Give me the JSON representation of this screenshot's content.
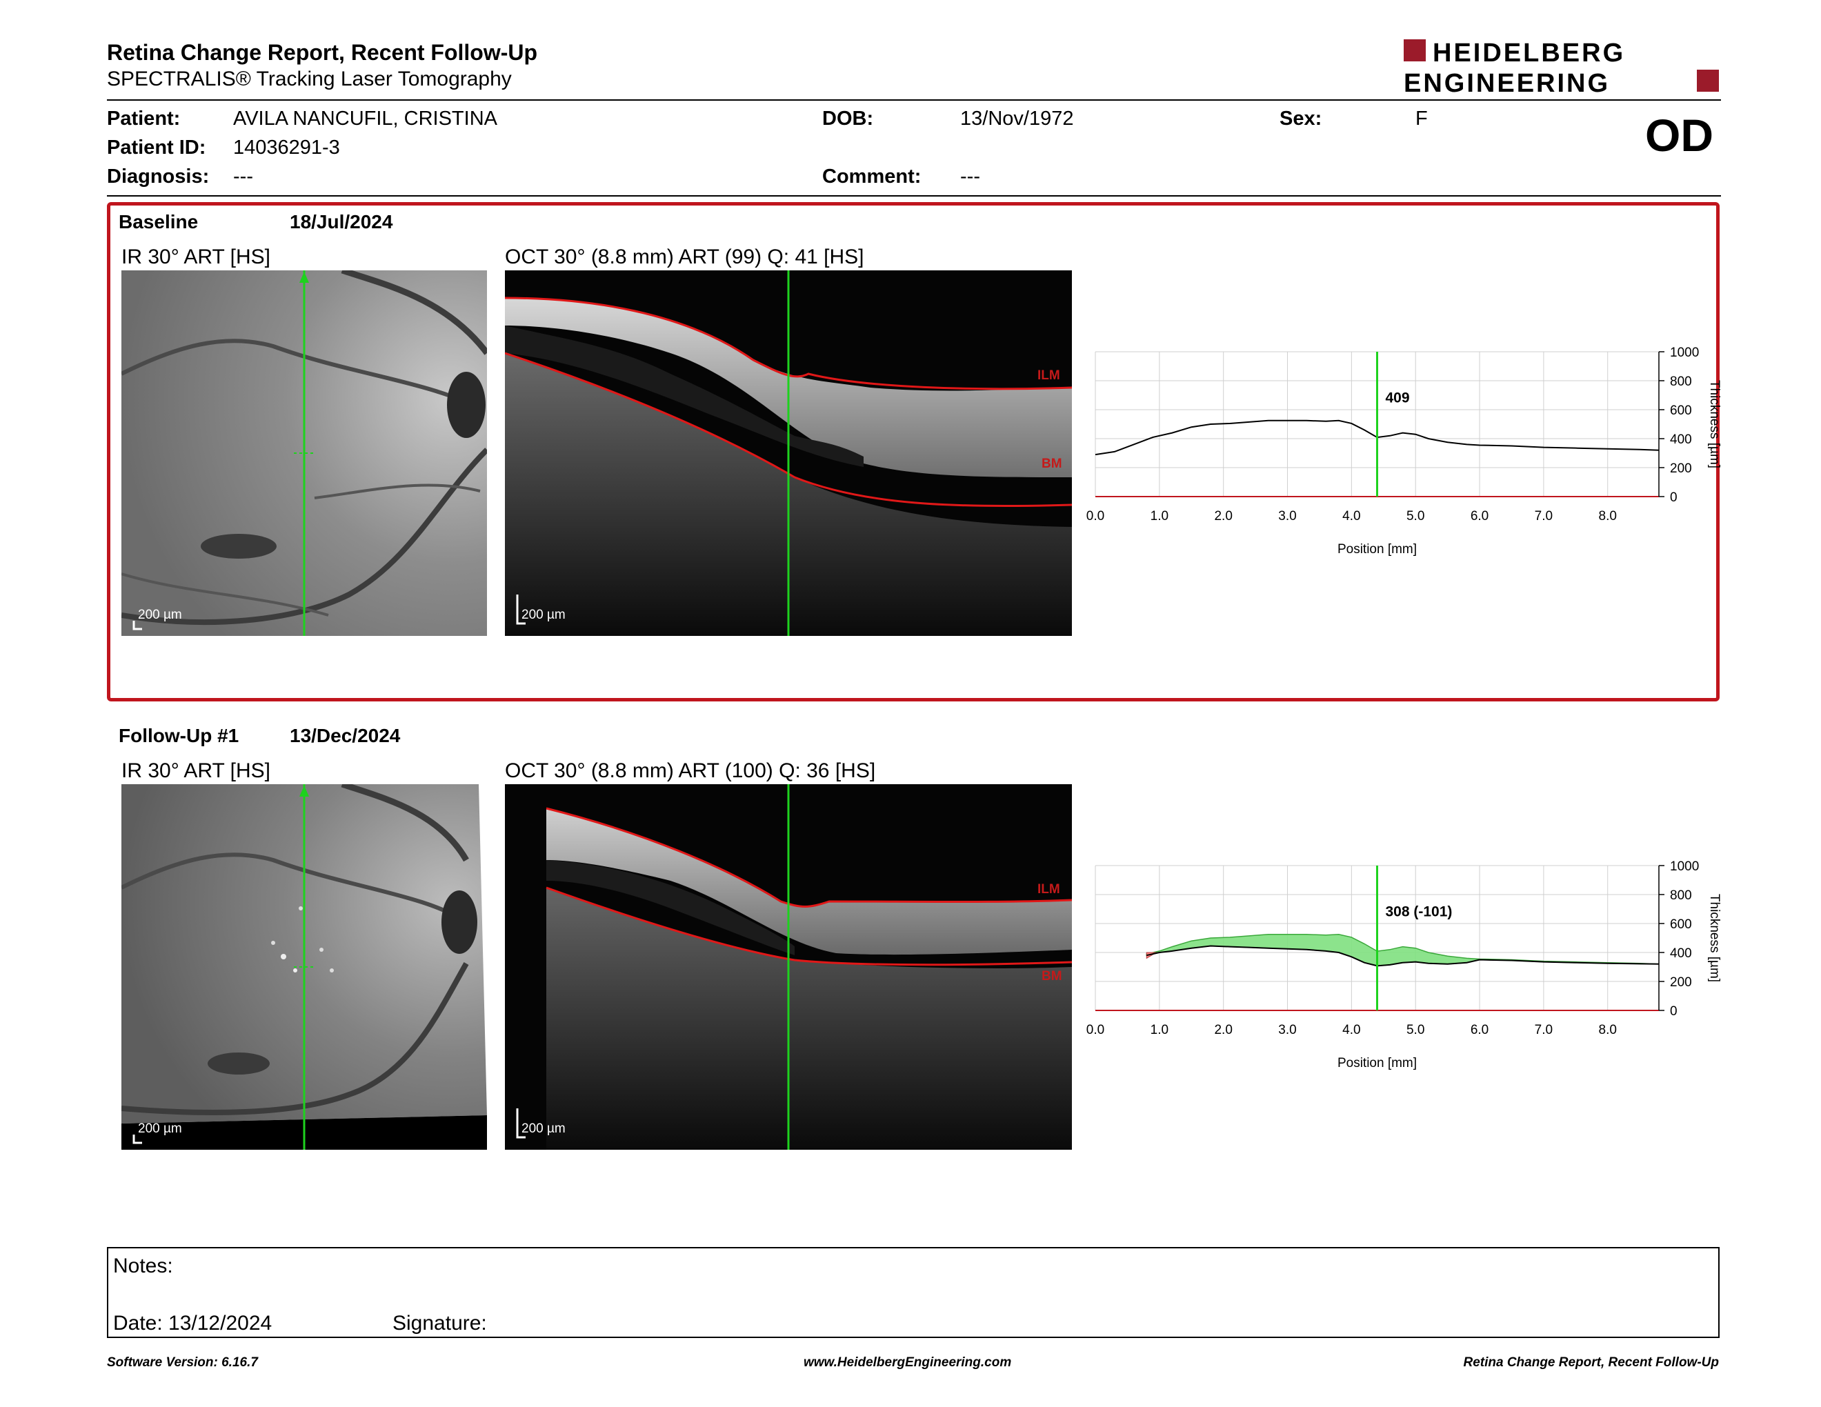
{
  "header": {
    "title": "Retina Change Report, Recent Follow-Up",
    "subtitle": "SPECTRALIS® Tracking Laser Tomography",
    "logo_line1": "HEIDELBERG",
    "logo_line2": "ENGINEERING",
    "eye": "OD"
  },
  "patient": {
    "patient_label": "Patient:",
    "patient_value": "AVILA NANCUFIL, CRISTINA",
    "id_label": "Patient ID:",
    "id_value": "14036291-3",
    "diagnosis_label": "Diagnosis:",
    "diagnosis_value": "---",
    "dob_label": "DOB:",
    "dob_value": "13/Nov/1972",
    "comment_label": "Comment:",
    "comment_value": "---",
    "sex_label": "Sex:",
    "sex_value": "F"
  },
  "baseline": {
    "label": "Baseline",
    "date": "18/Jul/2024",
    "ir_caption": "IR 30° ART [HS]",
    "oct_caption": "OCT 30° (8.8 mm) ART (99) Q: 41 [HS]",
    "scale": "200 µm",
    "ilm": "ILM",
    "bm": "BM"
  },
  "followup": {
    "label": "Follow-Up #1",
    "date": "13/Dec/2024",
    "ir_caption": "IR 30° ART [HS]",
    "oct_caption": "OCT 30° (8.8 mm) ART (100) Q: 36 [HS]",
    "scale": "200 µm",
    "ilm": "ILM",
    "bm": "BM"
  },
  "chart_data": [
    {
      "type": "line",
      "xlabel": "Position [mm]",
      "ylabel": "Thickness [µm]",
      "xlim": [
        0,
        8.8
      ],
      "ylim": [
        0,
        1000
      ],
      "xticks": [
        "0.0",
        "1.0",
        "2.0",
        "3.0",
        "4.0",
        "5.0",
        "6.0",
        "7.0",
        "8.0"
      ],
      "yticks": [
        "0",
        "200",
        "400",
        "600",
        "800",
        "1000"
      ],
      "cursor_x": 4.4,
      "cursor_label": "409",
      "grid": true,
      "series": [
        {
          "x": [
            0,
            0.3,
            0.6,
            0.9,
            1.2,
            1.5,
            1.8,
            2.1,
            2.4,
            2.7,
            3.0,
            3.3,
            3.6,
            3.8,
            4.0,
            4.2,
            4.4,
            4.6,
            4.8,
            5.0,
            5.2,
            5.5,
            5.8,
            6.0,
            6.5,
            7.0,
            7.5,
            8.0,
            8.5,
            8.8
          ],
          "y": [
            290,
            310,
            360,
            410,
            440,
            480,
            500,
            505,
            515,
            525,
            525,
            525,
            520,
            525,
            505,
            460,
            409,
            420,
            440,
            430,
            400,
            375,
            360,
            355,
            350,
            340,
            335,
            330,
            325,
            320
          ]
        }
      ]
    },
    {
      "type": "area",
      "xlabel": "Position [mm]",
      "ylabel": "Thickness [µm]",
      "xlim": [
        0,
        8.8
      ],
      "ylim": [
        0,
        1000
      ],
      "xticks": [
        "0.0",
        "1.0",
        "2.0",
        "3.0",
        "4.0",
        "5.0",
        "6.0",
        "7.0",
        "8.0"
      ],
      "yticks": [
        "0",
        "200",
        "400",
        "600",
        "800",
        "1000"
      ],
      "cursor_x": 4.4,
      "cursor_label": "308 (-101)",
      "grid": true,
      "series": [
        {
          "x": [
            0.8,
            1.0,
            1.2,
            1.5,
            1.8,
            2.1,
            2.4,
            2.7,
            3.0,
            3.3,
            3.6,
            3.8,
            4.0,
            4.2,
            4.4,
            4.6,
            4.8,
            5.0,
            5.2,
            5.5,
            5.8,
            6.0,
            6.5,
            7.0,
            7.5,
            8.0,
            8.5,
            8.8
          ],
          "y": [
            380,
            400,
            410,
            430,
            445,
            440,
            435,
            430,
            425,
            420,
            410,
            400,
            370,
            330,
            308,
            315,
            330,
            335,
            325,
            320,
            330,
            350,
            345,
            335,
            330,
            325,
            322,
            320
          ]
        }
      ],
      "baseline_series": [
        {
          "x": [
            0.8,
            1.0,
            1.2,
            1.5,
            1.8,
            2.1,
            2.4,
            2.7,
            3.0,
            3.3,
            3.6,
            3.8,
            4.0,
            4.2,
            4.4,
            4.6,
            4.8,
            5.0,
            5.2,
            5.5,
            5.8,
            6.0,
            6.5,
            7.0,
            7.5,
            8.0,
            8.5,
            8.8
          ],
          "y": [
            390,
            410,
            440,
            480,
            500,
            505,
            515,
            525,
            525,
            525,
            520,
            525,
            505,
            460,
            409,
            420,
            440,
            430,
            400,
            375,
            360,
            355,
            350,
            340,
            335,
            330,
            325,
            320
          ]
        }
      ],
      "colors": {
        "increase": "#ff8080",
        "decrease": "#7fe07f",
        "line": "#000000",
        "cursor": "#1ed21e"
      }
    }
  ],
  "notes": {
    "notes_label": "Notes:",
    "date_label": "Date: 13/12/2024",
    "signature_label": "Signature:"
  },
  "footer": {
    "software": "Software Version: 6.16.7",
    "website": "www.HeidelbergEngineering.com",
    "report": "Retina Change Report, Recent Follow-Up"
  }
}
